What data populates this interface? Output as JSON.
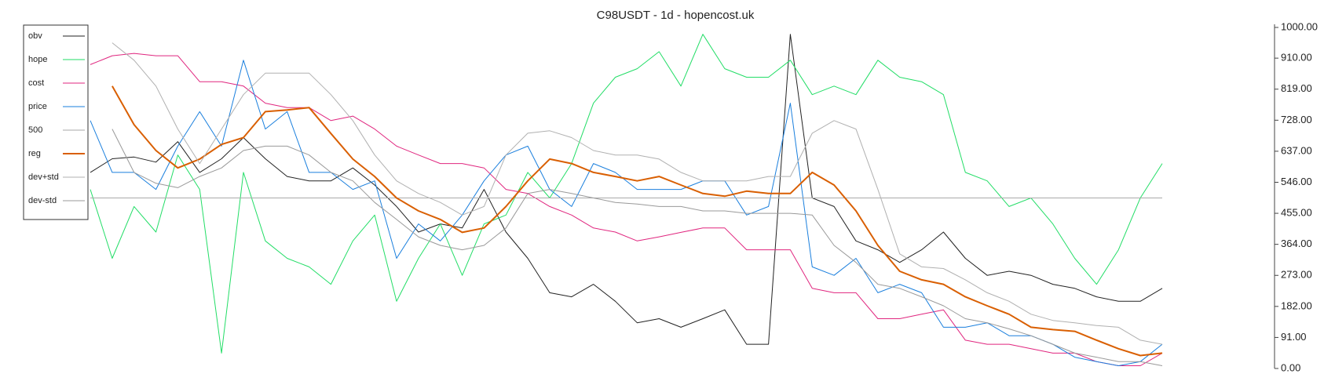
{
  "chart_data": {
    "type": "line",
    "title": "C98USDT - 1d - hopencost.uk",
    "ylim": [
      0,
      1000
    ],
    "yticks": [
      {
        "value": 0,
        "label": "0.00"
      },
      {
        "value": 91,
        "label": "91.00"
      },
      {
        "value": 182,
        "label": "182.00"
      },
      {
        "value": 273,
        "label": "273.00"
      },
      {
        "value": 364,
        "label": "364.00"
      },
      {
        "value": 455,
        "label": "455.00"
      },
      {
        "value": 546,
        "label": "546.00"
      },
      {
        "value": 637,
        "label": "637.00"
      },
      {
        "value": 728,
        "label": "728.00"
      },
      {
        "value": 819,
        "label": "819.00"
      },
      {
        "value": 910,
        "label": "910.00"
      },
      {
        "value": 1000,
        "label": "1000.00"
      }
    ],
    "grid": false,
    "legend": "top-left",
    "series": [
      {
        "name": "obv",
        "color": "#222222",
        "linewidth": 1,
        "values": [
          575,
          615,
          620,
          605,
          665,
          575,
          615,
          677,
          615,
          563,
          550,
          550,
          588,
          538,
          475,
          400,
          424,
          412,
          525,
          400,
          323,
          222,
          210,
          247,
          197,
          134,
          146,
          121,
          146,
          172,
          71,
          71,
          980,
          500,
          475,
          374,
          348,
          311,
          348,
          400,
          323,
          273,
          285,
          273,
          247,
          235,
          210,
          197,
          197,
          235
        ]
      },
      {
        "name": "hope",
        "color": "#22dd66",
        "linewidth": 1,
        "values": [
          525,
          323,
          475,
          400,
          626,
          525,
          45,
          575,
          374,
          323,
          298,
          247,
          374,
          450,
          197,
          323,
          424,
          273,
          424,
          450,
          575,
          500,
          601,
          778,
          854,
          879,
          929,
          828,
          980,
          879,
          854,
          854,
          904,
          803,
          828,
          803,
          904,
          854,
          841,
          803,
          575,
          550,
          475,
          500,
          424,
          323,
          247,
          348,
          500,
          601
        ]
      },
      {
        "name": "cost",
        "color": "#e0267f",
        "linewidth": 1,
        "values": [
          891,
          917,
          924,
          917,
          917,
          841,
          841,
          828,
          778,
          765,
          765,
          727,
          740,
          702,
          652,
          626,
          601,
          601,
          588,
          525,
          513,
          475,
          450,
          412,
          400,
          374,
          386,
          399,
          412,
          412,
          348,
          348,
          348,
          235,
          222,
          222,
          146,
          146,
          159,
          172,
          83,
          71,
          71,
          58,
          45,
          45,
          20,
          8,
          8,
          45
        ]
      },
      {
        "name": "price",
        "color": "#1a7fdd",
        "linewidth": 1,
        "values": [
          727,
          575,
          575,
          525,
          652,
          753,
          652,
          904,
          702,
          753,
          575,
          575,
          525,
          550,
          323,
          424,
          374,
          450,
          550,
          626,
          652,
          525,
          475,
          601,
          575,
          525,
          525,
          525,
          550,
          550,
          450,
          475,
          778,
          298,
          273,
          323,
          222,
          247,
          222,
          121,
          121,
          134,
          96,
          96,
          71,
          33,
          20,
          8,
          20,
          71
        ]
      },
      {
        "name": "500",
        "color": "#aaaaaa",
        "linewidth": 1,
        "values": [
          500,
          500,
          500,
          500,
          500,
          500,
          500,
          500,
          500,
          500,
          500,
          500,
          500,
          500,
          500,
          500,
          500,
          500,
          500,
          500,
          500,
          500,
          500,
          500,
          500,
          500,
          500,
          500,
          500,
          500,
          500,
          500,
          500,
          500,
          500,
          500,
          500,
          500,
          500,
          500,
          500,
          500,
          500,
          500,
          500,
          500,
          500,
          500,
          500,
          500
        ]
      },
      {
        "name": "reg",
        "color": "#d95f02",
        "linewidth": 2,
        "values": [
          null,
          828,
          715,
          639,
          588,
          614,
          657,
          677,
          753,
          758,
          765,
          689,
          614,
          563,
          500,
          462,
          437,
          399,
          412,
          475,
          550,
          614,
          601,
          575,
          563,
          550,
          563,
          538,
          513,
          505,
          520,
          513,
          513,
          575,
          538,
          462,
          361,
          285,
          260,
          247,
          210,
          184,
          159,
          121,
          114,
          109,
          83,
          58,
          38,
          45
        ]
      },
      {
        "name": "dev+std",
        "color": "#b0b0b0",
        "linewidth": 1,
        "values": [
          null,
          955,
          904,
          828,
          702,
          601,
          702,
          803,
          866,
          866,
          866,
          803,
          727,
          626,
          550,
          513,
          487,
          450,
          475,
          626,
          690,
          697,
          677,
          639,
          626,
          626,
          614,
          575,
          550,
          550,
          550,
          563,
          563,
          690,
          727,
          702,
          525,
          336,
          298,
          293,
          260,
          222,
          197,
          159,
          141,
          134,
          126,
          121,
          83,
          71
        ]
      },
      {
        "name": "dev-std",
        "color": "#999999",
        "linewidth": 1,
        "values": [
          null,
          702,
          575,
          543,
          530,
          563,
          588,
          639,
          652,
          652,
          626,
          575,
          550,
          487,
          437,
          386,
          361,
          348,
          361,
          412,
          513,
          525,
          513,
          500,
          487,
          482,
          475,
          475,
          462,
          462,
          455,
          455,
          455,
          450,
          361,
          311,
          247,
          235,
          210,
          184,
          146,
          134,
          116,
          96,
          71,
          45,
          33,
          20,
          20,
          8
        ]
      }
    ]
  }
}
